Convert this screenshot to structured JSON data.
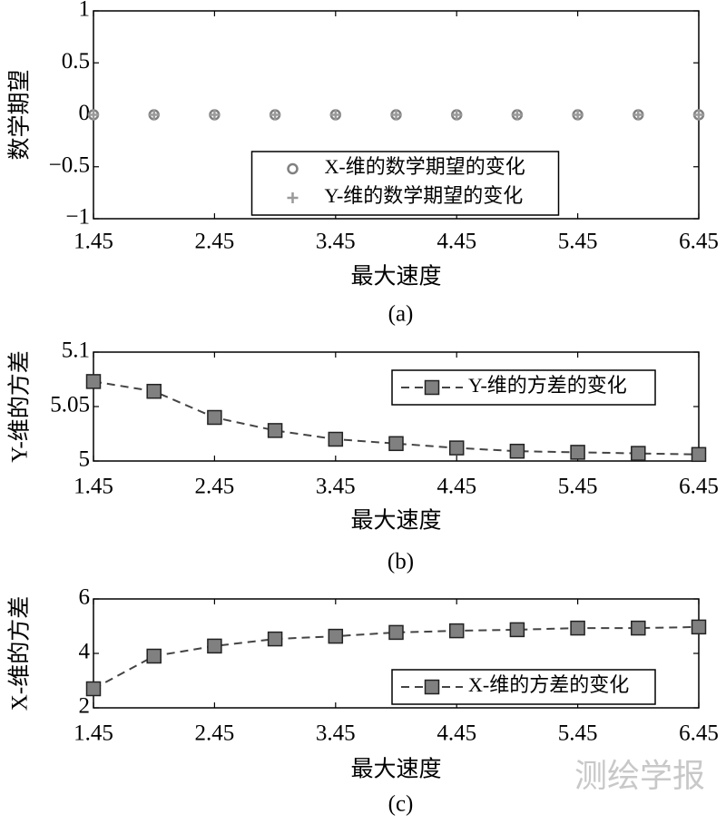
{
  "chart_data": [
    {
      "type": "scatter",
      "caption": "(a)",
      "xlabel": "最大速度",
      "ylabel": "数学期望",
      "x": [
        1.45,
        1.95,
        2.45,
        2.95,
        3.45,
        3.95,
        4.45,
        4.95,
        5.45,
        5.95,
        6.45
      ],
      "xlim": [
        1.45,
        6.45
      ],
      "xticks": [
        1.45,
        2.45,
        3.45,
        4.45,
        5.45,
        6.45
      ],
      "ylim": [
        -1,
        1
      ],
      "yticks": [
        {
          "value": -1,
          "label": "−1"
        },
        {
          "value": -0.5,
          "label": "−0.5"
        },
        0,
        0.5,
        1
      ],
      "legend": "lower center",
      "series": [
        {
          "name": "X-维的数学期望的变化",
          "color": "#808080",
          "marker": "circle",
          "values": [
            0,
            0,
            0,
            0,
            0,
            0,
            0,
            0,
            0,
            0,
            0
          ]
        },
        {
          "name": "Y-维的数学期望的变化",
          "color": "#9a9a9a",
          "marker": "plus",
          "values": [
            0,
            0,
            0,
            0,
            0,
            0,
            0,
            0,
            0,
            0,
            0
          ]
        }
      ]
    },
    {
      "type": "line",
      "caption": "(b)",
      "xlabel": "最大速度",
      "ylabel": "Y-维的方差",
      "x": [
        1.45,
        1.95,
        2.45,
        2.95,
        3.45,
        3.95,
        4.45,
        4.95,
        5.45,
        5.95,
        6.45
      ],
      "xlim": [
        1.45,
        6.45
      ],
      "xticks": [
        1.45,
        2.45,
        3.45,
        4.45,
        5.45,
        6.45
      ],
      "ylim": [
        5,
        5.1
      ],
      "yticks": [
        5,
        5.05,
        5.1
      ],
      "legend": "upper right",
      "series": [
        {
          "name": "Y-维的方差的变化",
          "color": "#808080",
          "marker": "square",
          "values": [
            5.073,
            5.064,
            5.04,
            5.028,
            5.02,
            5.016,
            5.012,
            5.009,
            5.008,
            5.007,
            5.006
          ]
        }
      ]
    },
    {
      "type": "line",
      "caption": "(c)",
      "xlabel": "最大速度",
      "ylabel": "X-维的方差",
      "x": [
        1.45,
        1.95,
        2.45,
        2.95,
        3.45,
        3.95,
        4.45,
        4.95,
        5.45,
        5.95,
        6.45
      ],
      "xlim": [
        1.45,
        6.45
      ],
      "xticks": [
        1.45,
        2.45,
        3.45,
        4.45,
        5.45,
        6.45
      ],
      "ylim": [
        2,
        6
      ],
      "yticks": [
        2,
        4,
        6
      ],
      "legend": "lower right",
      "series": [
        {
          "name": "X-维的方差的变化",
          "color": "#808080",
          "marker": "square",
          "values": [
            2.7,
            3.9,
            4.27,
            4.53,
            4.63,
            4.77,
            4.83,
            4.87,
            4.93,
            4.93,
            4.97
          ]
        }
      ]
    }
  ],
  "watermark": "测绘学报"
}
